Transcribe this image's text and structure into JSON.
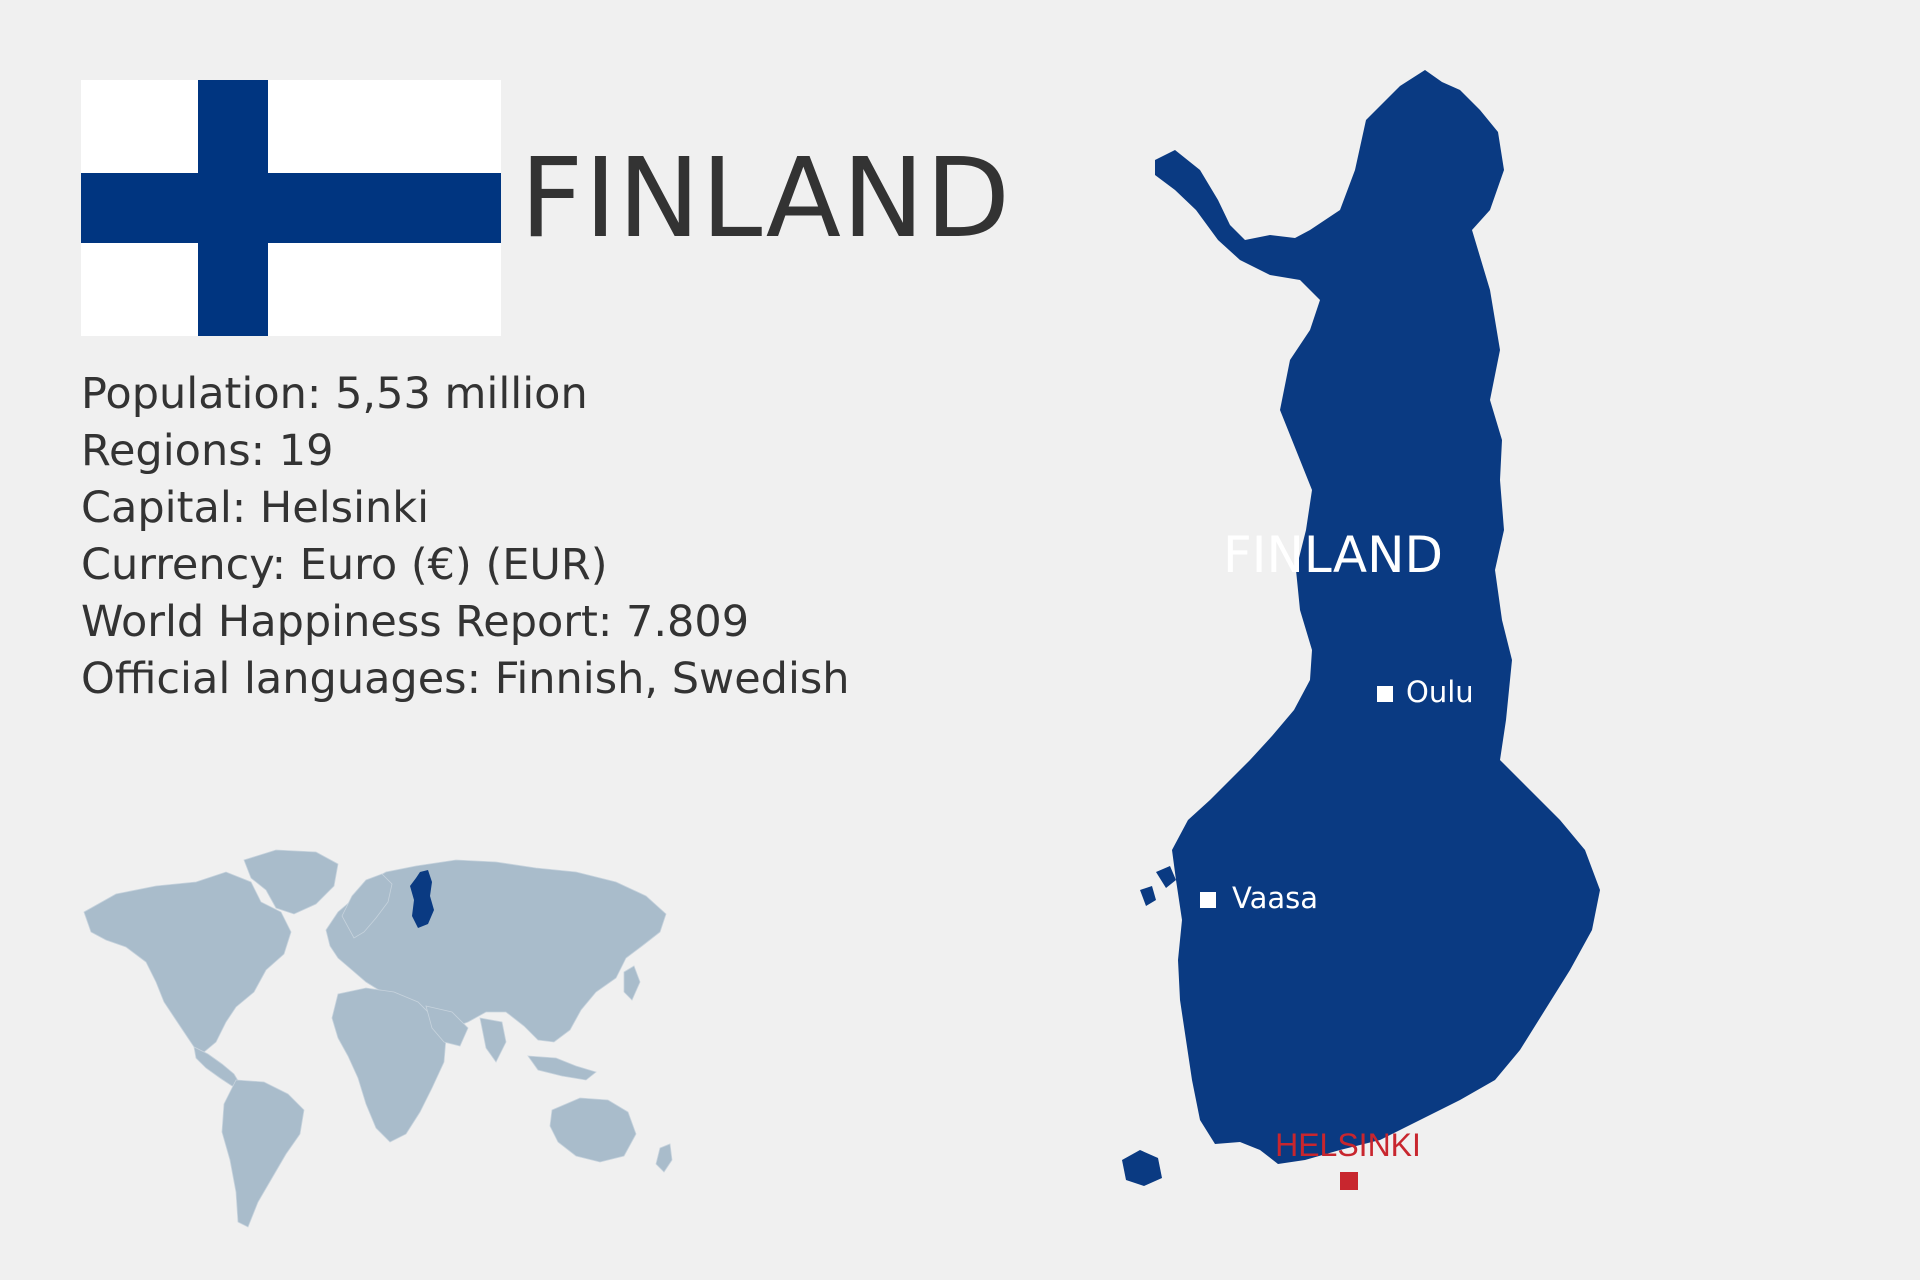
{
  "title": "FINLAND",
  "colors": {
    "background": "#f0f0f0",
    "flag_blue": "#003580",
    "map_blue": "#0a3a82",
    "world_land": "#a9bccb",
    "capital_red": "#c8262e",
    "text": "#333333"
  },
  "facts": [
    "Population: 5,53 million",
    "Regions: 19",
    "Capital: Helsinki",
    "Currency: Euro (€) (EUR)",
    "World Happiness Report: 7.809",
    "Official languages: Finnish, Swedish"
  ],
  "map": {
    "country_label": "FINLAND",
    "cities": [
      {
        "name": "Oulu",
        "type": "city"
      },
      {
        "name": "Vaasa",
        "type": "city"
      }
    ],
    "capital": {
      "name": "HELSINKI",
      "type": "capital"
    }
  },
  "icons": [
    "finland-flag-icon",
    "world-map",
    "finland-map"
  ]
}
